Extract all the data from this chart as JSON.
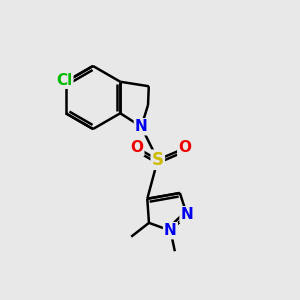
{
  "background_color": "#E8E8E8",
  "bond_color": "#000000",
  "bond_width": 1.8,
  "atom_colors": {
    "Cl": "#00BB00",
    "N": "#0000EE",
    "S": "#CCBB00",
    "O": "#EE0000",
    "C": "#000000"
  },
  "font_size_atom": 11,
  "font_size_small": 9,
  "figsize": [
    3.0,
    3.0
  ],
  "dpi": 100
}
